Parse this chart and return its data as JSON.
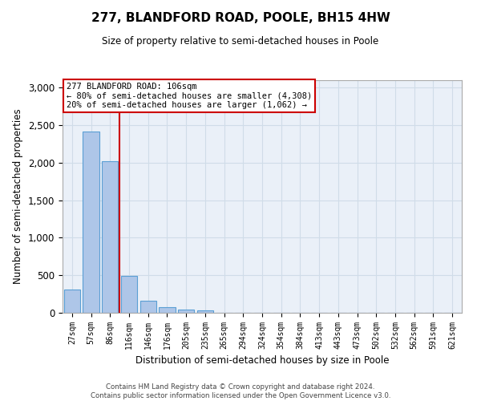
{
  "title": "277, BLANDFORD ROAD, POOLE, BH15 4HW",
  "subtitle": "Size of property relative to semi-detached houses in Poole",
  "xlabel": "Distribution of semi-detached houses by size in Poole",
  "ylabel": "Number of semi-detached properties",
  "bar_labels": [
    "27sqm",
    "57sqm",
    "86sqm",
    "116sqm",
    "146sqm",
    "176sqm",
    "205sqm",
    "235sqm",
    "265sqm",
    "294sqm",
    "324sqm",
    "354sqm",
    "384sqm",
    "413sqm",
    "443sqm",
    "473sqm",
    "502sqm",
    "532sqm",
    "562sqm",
    "591sqm",
    "621sqm"
  ],
  "bar_values": [
    310,
    2420,
    2020,
    490,
    160,
    70,
    40,
    30,
    0,
    0,
    0,
    0,
    0,
    0,
    0,
    0,
    0,
    0,
    0,
    0,
    0
  ],
  "bar_color": "#aec6e8",
  "bar_edgecolor": "#5a9fd4",
  "vline_x": 2.5,
  "vline_color": "#cc0000",
  "annotation_title": "277 BLANDFORD ROAD: 106sqm",
  "annotation_line1": "← 80% of semi-detached houses are smaller (4,308)",
  "annotation_line2": "20% of semi-detached houses are larger (1,062) →",
  "annotation_box_color": "#ffffff",
  "annotation_box_edgecolor": "#cc0000",
  "ylim": [
    0,
    3100
  ],
  "yticks": [
    0,
    500,
    1000,
    1500,
    2000,
    2500,
    3000
  ],
  "footer_line1": "Contains HM Land Registry data © Crown copyright and database right 2024.",
  "footer_line2": "Contains public sector information licensed under the Open Government Licence v3.0.",
  "grid_color": "#d0dce8",
  "background_color": "#eaf0f8"
}
